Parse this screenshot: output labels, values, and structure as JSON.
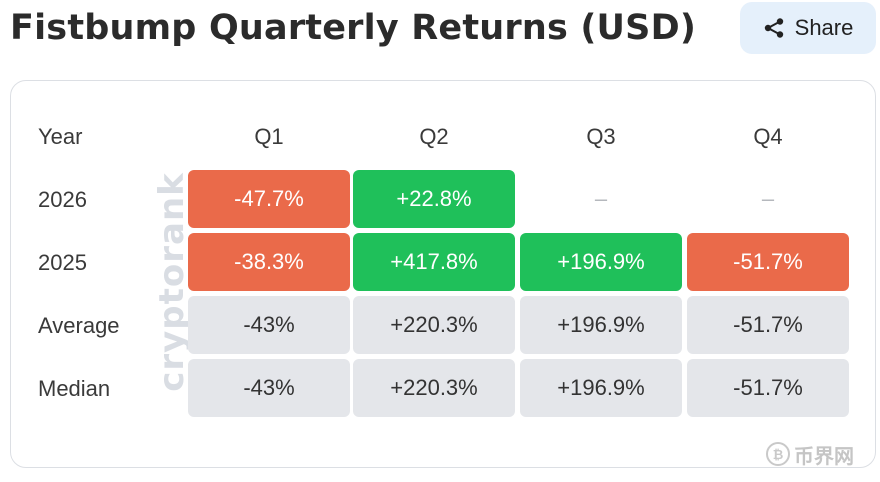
{
  "title": "Fistbump Quarterly Returns (USD)",
  "share": {
    "label": "Share",
    "icon": "share-icon"
  },
  "watermark": "cryptorank",
  "table": {
    "corner": "Year",
    "columns": [
      "Q1",
      "Q2",
      "Q3",
      "Q4"
    ],
    "rows": [
      {
        "label": "2026",
        "cells": [
          "-47.7%",
          "+22.8%",
          "–",
          "–"
        ],
        "kinds": [
          "neg",
          "pos",
          "empty",
          "empty"
        ]
      },
      {
        "label": "2025",
        "cells": [
          "-38.3%",
          "+417.8%",
          "+196.9%",
          "-51.7%"
        ],
        "kinds": [
          "neg",
          "pos",
          "pos",
          "neg"
        ]
      },
      {
        "label": "Average",
        "cells": [
          "-43%",
          "+220.3%",
          "+196.9%",
          "-51.7%"
        ],
        "kinds": [
          "stat",
          "stat",
          "stat",
          "stat"
        ]
      },
      {
        "label": "Median",
        "cells": [
          "-43%",
          "+220.3%",
          "+196.9%",
          "-51.7%"
        ],
        "kinds": [
          "stat",
          "stat",
          "stat",
          "stat"
        ]
      }
    ]
  },
  "colors": {
    "negative": "#ea6a4a",
    "positive": "#1fc05a",
    "stat": "#e4e6ea",
    "share_bg": "#e5f0fb"
  },
  "footer_logo": {
    "text": "币界网",
    "icon": "coin-logo-icon"
  }
}
